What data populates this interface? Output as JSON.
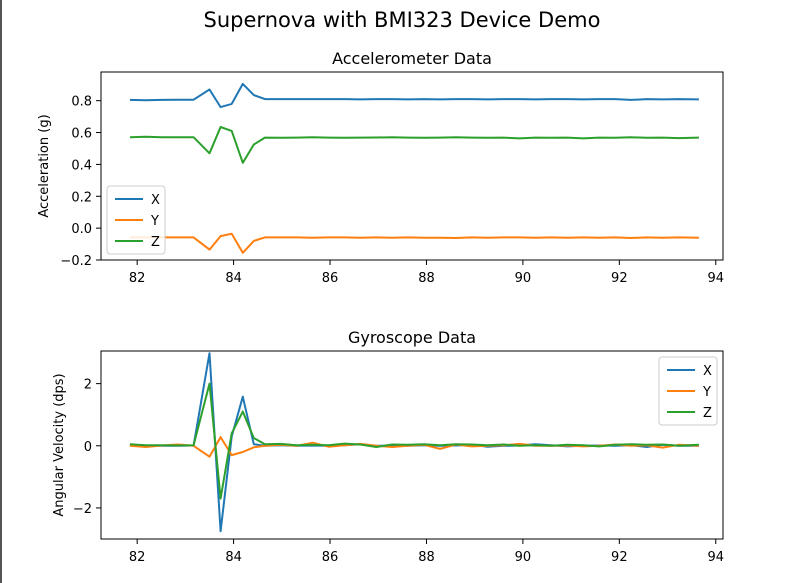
{
  "figure": {
    "title": "Supernova with BMI323 Device Demo"
  },
  "colors": {
    "x": "#1f77b4",
    "y": "#ff7f0e",
    "z": "#2ca02c",
    "axis": "#000000",
    "background": "#ffffff"
  },
  "chart_data": [
    {
      "type": "line",
      "title": "Accelerometer Data",
      "xlabel": "",
      "ylabel": "Acceleration (g)",
      "xlim": [
        81.25,
        94.15
      ],
      "ylim": [
        -0.2,
        0.98
      ],
      "xticks": [
        82,
        84,
        86,
        88,
        90,
        92,
        94
      ],
      "yticks": [
        -0.2,
        0.0,
        0.2,
        0.4,
        0.6,
        0.8
      ],
      "ytick_labels": [
        "−0.2",
        "0.0",
        "0.2",
        "0.4",
        "0.6",
        "0.8"
      ],
      "grid": false,
      "legend": "lower-left",
      "x": [
        81.85,
        82.18,
        82.51,
        82.84,
        83.17,
        83.5,
        83.73,
        83.96,
        84.19,
        84.42,
        84.65,
        84.98,
        85.31,
        85.64,
        85.97,
        86.3,
        86.63,
        86.96,
        87.29,
        87.62,
        87.95,
        88.28,
        88.61,
        88.94,
        89.27,
        89.6,
        89.93,
        90.26,
        90.59,
        90.92,
        91.25,
        91.58,
        91.91,
        92.24,
        92.57,
        92.9,
        93.23,
        93.65
      ],
      "series": [
        {
          "name": "X",
          "color": "#1f77b4",
          "values": [
            0.805,
            0.803,
            0.805,
            0.806,
            0.806,
            0.87,
            0.76,
            0.78,
            0.905,
            0.835,
            0.81,
            0.81,
            0.81,
            0.81,
            0.81,
            0.81,
            0.808,
            0.81,
            0.81,
            0.808,
            0.81,
            0.808,
            0.81,
            0.81,
            0.808,
            0.81,
            0.81,
            0.808,
            0.81,
            0.81,
            0.808,
            0.81,
            0.81,
            0.805,
            0.81,
            0.808,
            0.81,
            0.808
          ]
        },
        {
          "name": "Y",
          "color": "#ff7f0e",
          "values": [
            -0.058,
            -0.058,
            -0.058,
            -0.058,
            -0.058,
            -0.135,
            -0.05,
            -0.035,
            -0.155,
            -0.08,
            -0.058,
            -0.058,
            -0.058,
            -0.06,
            -0.058,
            -0.058,
            -0.06,
            -0.058,
            -0.06,
            -0.058,
            -0.06,
            -0.06,
            -0.062,
            -0.058,
            -0.06,
            -0.058,
            -0.058,
            -0.06,
            -0.058,
            -0.06,
            -0.058,
            -0.06,
            -0.058,
            -0.062,
            -0.058,
            -0.06,
            -0.058,
            -0.06
          ]
        },
        {
          "name": "Z",
          "color": "#2ca02c",
          "values": [
            0.57,
            0.573,
            0.571,
            0.57,
            0.571,
            0.47,
            0.635,
            0.61,
            0.41,
            0.525,
            0.568,
            0.567,
            0.568,
            0.57,
            0.568,
            0.567,
            0.568,
            0.569,
            0.57,
            0.568,
            0.567,
            0.568,
            0.57,
            0.568,
            0.567,
            0.568,
            0.563,
            0.568,
            0.567,
            0.568,
            0.563,
            0.568,
            0.567,
            0.57,
            0.567,
            0.568,
            0.565,
            0.568
          ]
        }
      ]
    },
    {
      "type": "line",
      "title": "Gyroscope Data",
      "xlabel": "",
      "ylabel": "Angular Velocity (dps)",
      "xlim": [
        81.25,
        94.15
      ],
      "ylim": [
        -3.0,
        3.05
      ],
      "xticks": [
        82,
        84,
        86,
        88,
        90,
        92,
        94
      ],
      "yticks": [
        -2,
        0,
        2
      ],
      "ytick_labels": [
        "−2",
        "0",
        "2"
      ],
      "grid": false,
      "legend": "top-right",
      "x": [
        81.85,
        82.18,
        82.51,
        82.84,
        83.17,
        83.5,
        83.73,
        83.96,
        84.19,
        84.42,
        84.65,
        84.98,
        85.31,
        85.64,
        85.97,
        86.3,
        86.63,
        86.96,
        87.29,
        87.62,
        87.95,
        88.28,
        88.61,
        88.94,
        89.27,
        89.6,
        89.93,
        90.26,
        90.59,
        90.92,
        91.25,
        91.58,
        91.91,
        92.24,
        92.57,
        92.9,
        93.23,
        93.65
      ],
      "series": [
        {
          "name": "X",
          "color": "#1f77b4",
          "values": [
            0.02,
            0.01,
            0.0,
            0.0,
            0.01,
            2.98,
            -2.75,
            0.3,
            1.58,
            0.05,
            0.0,
            0.02,
            0.0,
            0.01,
            0.0,
            0.02,
            0.05,
            0.0,
            0.01,
            0.0,
            0.02,
            0.0,
            0.01,
            0.03,
            -0.03,
            0.0,
            0.01,
            0.05,
            0.02,
            -0.02,
            0.0,
            0.01,
            0.0,
            0.02,
            -0.04,
            0.03,
            0.0,
            0.0
          ]
        },
        {
          "name": "Y",
          "color": "#ff7f0e",
          "values": [
            0.0,
            -0.04,
            0.01,
            0.04,
            0.0,
            -0.35,
            0.28,
            -0.3,
            -0.2,
            -0.05,
            0.0,
            0.03,
            0.0,
            0.1,
            -0.03,
            0.02,
            0.06,
            0.0,
            -0.04,
            0.0,
            0.03,
            -0.1,
            0.04,
            -0.02,
            0.0,
            0.02,
            0.06,
            0.0,
            0.0,
            0.01,
            -0.02,
            0.0,
            0.04,
            0.0,
            0.02,
            -0.06,
            0.03,
            0.0
          ]
        },
        {
          "name": "Z",
          "color": "#2ca02c",
          "values": [
            0.05,
            0.02,
            0.02,
            0.01,
            0.02,
            2.0,
            -1.7,
            0.4,
            1.1,
            0.25,
            0.05,
            0.06,
            0.02,
            0.03,
            0.02,
            0.07,
            0.04,
            -0.04,
            0.04,
            0.03,
            0.05,
            0.02,
            0.05,
            0.04,
            0.02,
            0.04,
            0.0,
            0.02,
            0.0,
            0.03,
            0.02,
            -0.02,
            0.03,
            0.05,
            0.03,
            0.04,
            0.0,
            0.03
          ]
        }
      ]
    }
  ]
}
